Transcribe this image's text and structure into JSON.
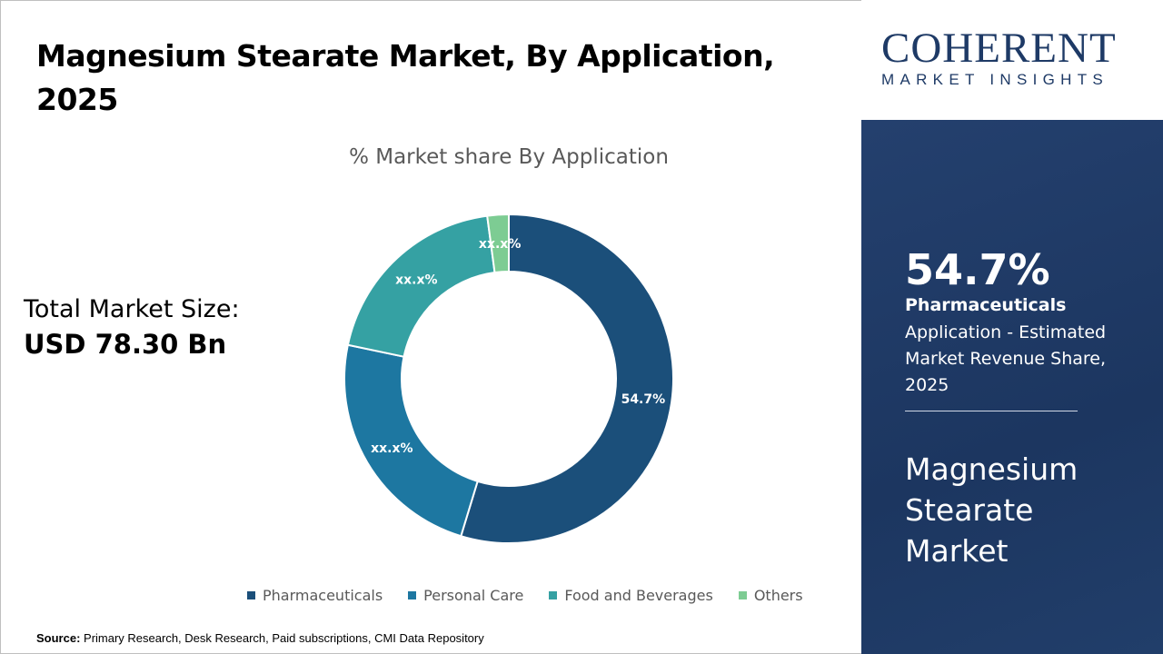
{
  "header": {
    "title": "Magnesium Stearate Market, By Application, 2025"
  },
  "total_market": {
    "label": "Total Market Size:",
    "value": "USD 78.30 Bn"
  },
  "source": {
    "label": "Source:",
    "text": "Primary Research, Desk Research, Paid subscriptions, CMI Data Repository"
  },
  "logo": {
    "main": "COHERENT",
    "sub": "MARKET INSIGHTS"
  },
  "panel": {
    "highlight_value": "54.7%",
    "segment": "Pharmaceuticals",
    "description": "Application - Estimated Market Revenue Share, 2025",
    "market_name": "Magnesium Stearate Market"
  },
  "chart_data": {
    "type": "pie",
    "donut": true,
    "title": "% Market share By Application",
    "categories": [
      "Pharmaceuticals",
      "Personal Care",
      "Food and Beverages",
      "Others"
    ],
    "values": [
      54.7,
      23.6,
      19.6,
      2.1
    ],
    "data_labels": [
      "54.7%",
      "xx.x%",
      "xx.x%",
      "xx.x%"
    ],
    "colors": [
      "#1b4f7a",
      "#1d77a1",
      "#35a1a3",
      "#7dcc93"
    ],
    "legend_position": "bottom"
  }
}
